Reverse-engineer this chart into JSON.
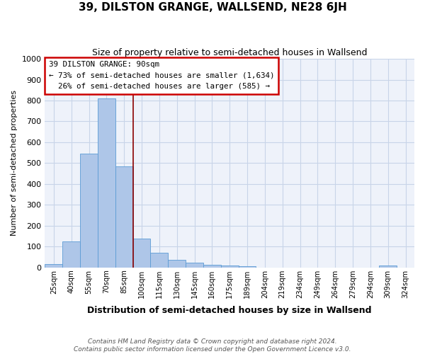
{
  "title": "39, DILSTON GRANGE, WALLSEND, NE28 6JH",
  "subtitle": "Size of property relative to semi-detached houses in Wallsend",
  "xlabel": "Distribution of semi-detached houses by size in Wallsend",
  "ylabel": "Number of semi-detached properties",
  "bar_labels": [
    "25sqm",
    "40sqm",
    "55sqm",
    "70sqm",
    "85sqm",
    "100sqm",
    "115sqm",
    "130sqm",
    "145sqm",
    "160sqm",
    "175sqm",
    "189sqm",
    "204sqm",
    "219sqm",
    "234sqm",
    "249sqm",
    "264sqm",
    "279sqm",
    "294sqm",
    "309sqm",
    "324sqm"
  ],
  "bar_values": [
    15,
    125,
    545,
    810,
    485,
    138,
    72,
    38,
    22,
    12,
    8,
    5,
    0,
    0,
    0,
    0,
    0,
    0,
    0,
    8,
    0
  ],
  "bar_color": "#aec6e8",
  "bar_edge_color": "#5b9bd5",
  "ylim": [
    0,
    1000
  ],
  "yticks": [
    0,
    100,
    200,
    300,
    400,
    500,
    600,
    700,
    800,
    900,
    1000
  ],
  "property_label": "39 DILSTON GRANGE: 90sqm",
  "smaller_pct": 73,
  "smaller_count": "1,634",
  "larger_pct": 26,
  "larger_count": "585",
  "vline_color": "#8b0000",
  "annotation_box_color": "#cc0000",
  "grid_color": "#c8d4e8",
  "background_color": "#eef2fa",
  "footer_line1": "Contains HM Land Registry data © Crown copyright and database right 2024.",
  "footer_line2": "Contains public sector information licensed under the Open Government Licence v3.0."
}
